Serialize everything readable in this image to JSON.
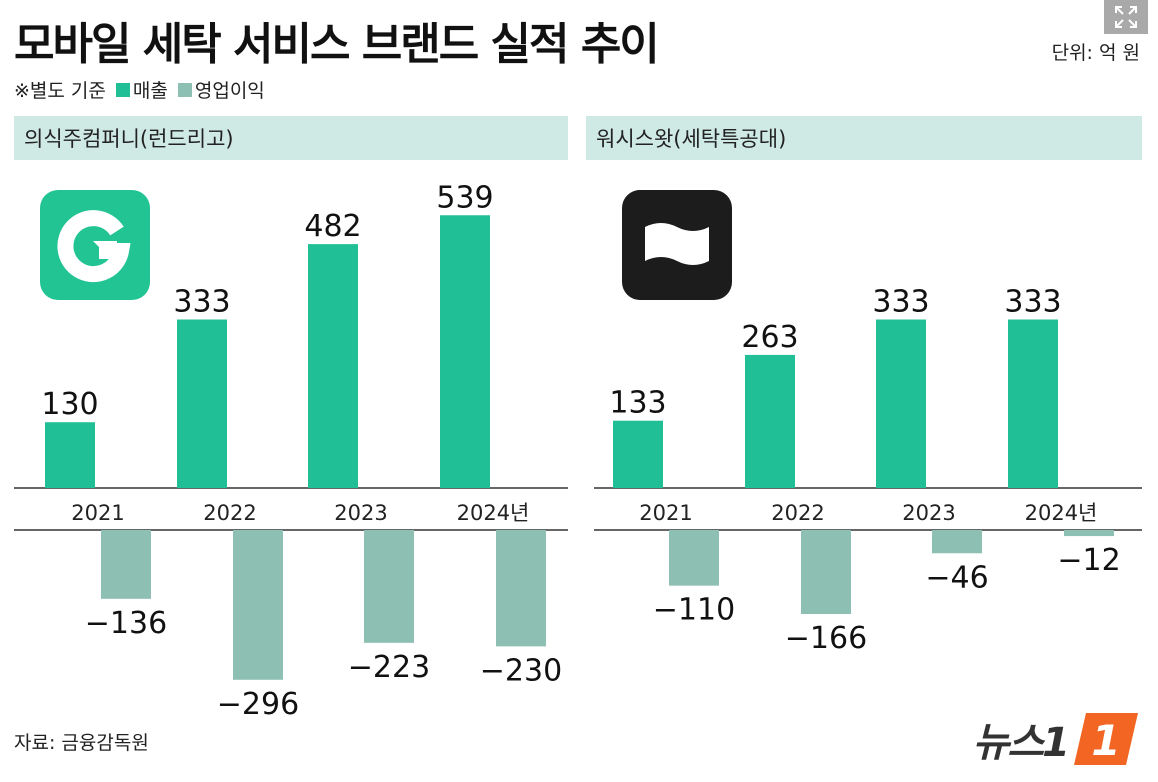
{
  "header": {
    "title": "모바일 세탁 서비스 브랜드 실적 추이",
    "unit": "단위: 억 원",
    "note": "※별도 기준",
    "legend": [
      {
        "label": "매출",
        "color": "#20bf95"
      },
      {
        "label": "영업이익",
        "color": "#8ebfb3"
      }
    ]
  },
  "colors": {
    "revenue": "#20bf95",
    "profit": "#8ebfb3",
    "header_bg": "#cfe9e4"
  },
  "panels": [
    {
      "name": "의식주컴퍼니(런드리고)",
      "logo": "laundrygo-g-icon",
      "logo_color": "#22c493"
    },
    {
      "name": "워시스왓(세탁특공대)",
      "logo": "flag-icon",
      "logo_color": "#1c1c1c"
    }
  ],
  "chart_data": [
    {
      "type": "bar",
      "categories": [
        "2021",
        "2022",
        "2023",
        "2024년"
      ],
      "series": [
        {
          "name": "매출",
          "values": [
            130,
            333,
            482,
            539
          ]
        },
        {
          "name": "영업이익",
          "values": [
            -136,
            -296,
            -223,
            -230
          ]
        }
      ],
      "title": "의식주컴퍼니(런드리고)",
      "ylabel": "",
      "xlabel": ""
    },
    {
      "type": "bar",
      "categories": [
        "2021",
        "2022",
        "2023",
        "2024년"
      ],
      "series": [
        {
          "name": "매출",
          "values": [
            133,
            263,
            333,
            333
          ]
        },
        {
          "name": "영업이익",
          "values": [
            -110,
            -166,
            -46,
            -12
          ]
        }
      ],
      "title": "워시스왓(세탁특공대)",
      "ylabel": "",
      "xlabel": ""
    }
  ],
  "footer": {
    "source": "자료: 금융감독원",
    "brand": "뉴스1",
    "brand_mark": "1"
  }
}
